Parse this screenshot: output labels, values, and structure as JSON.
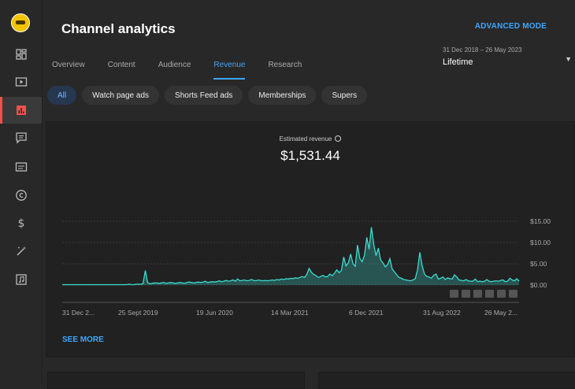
{
  "sidebar": {
    "items": [
      {
        "icon": "dashboard-icon"
      },
      {
        "icon": "content-icon"
      },
      {
        "icon": "analytics-icon",
        "active": true
      },
      {
        "icon": "comments-icon"
      },
      {
        "icon": "subtitles-icon"
      },
      {
        "icon": "copyright-icon"
      },
      {
        "icon": "earn-icon"
      },
      {
        "icon": "customization-icon"
      },
      {
        "icon": "audio-library-icon"
      }
    ]
  },
  "header": {
    "title": "Channel analytics",
    "advanced_mode": "ADVANCED MODE",
    "date_range": "31 Dec 2018 – 26 May 2023",
    "date_label": "Lifetime"
  },
  "tabs": [
    "Overview",
    "Content",
    "Audience",
    "Revenue",
    "Research"
  ],
  "chips": [
    "All",
    "Watch page ads",
    "Shorts Feed ads",
    "Memberships",
    "Supers"
  ],
  "metric": {
    "label": "Estimated revenue",
    "value": "$1,531.44"
  },
  "chart_data": {
    "type": "area",
    "x_ticks": [
      "31 Dec 2...",
      "25 Sept 2019",
      "19 Jun 2020",
      "14 Mar 2021",
      "6 Dec 2021",
      "31 Aug 2022",
      "26 May 2..."
    ],
    "y_ticks": [
      "$15.00",
      "$10.00",
      "$5.00",
      "$0.00"
    ],
    "ylim": [
      0,
      15
    ],
    "series_color": "#3ddbd0",
    "series": [
      {
        "values": [
          0.1,
          0.1,
          0.1,
          0.1,
          0.1,
          0.1,
          0.1,
          0.1,
          0.1,
          0.1,
          0.1,
          0.1,
          0.1,
          0.1,
          0.1,
          0.1,
          0.1,
          0.1,
          0.1,
          0.1,
          0.1,
          0.1,
          0.1,
          0.1,
          0.1,
          0.1,
          0.1,
          0.1,
          0.1,
          0.2,
          0.1,
          0.1,
          0.2,
          0.2,
          0.2,
          0.3,
          3.4,
          0.6,
          0.3,
          0.4,
          0.5,
          0.5,
          0.4,
          0.5,
          0.6,
          0.4,
          0.5,
          0.6,
          0.5,
          0.4,
          0.5,
          0.6,
          0.5,
          0.4,
          0.6,
          0.7,
          0.6,
          0.5,
          0.6,
          0.7,
          0.6,
          0.7,
          0.9,
          0.6,
          0.7,
          0.8,
          0.7,
          0.8,
          1.0,
          0.8,
          0.9,
          1.1,
          0.9,
          1.0,
          1.2,
          0.9,
          1.4,
          1.0,
          1.1,
          1.2,
          1.0,
          1.1,
          1.3,
          1.1,
          1.0,
          1.2,
          1.1,
          1.0,
          1.1,
          1.0,
          1.1,
          1.2,
          1.1,
          1.3,
          1.2,
          1.4,
          1.3,
          1.5,
          1.4,
          1.6,
          1.5,
          1.7,
          1.6,
          1.8,
          2.0,
          1.8,
          2.5,
          3.9,
          3.0,
          2.5,
          2.2,
          1.8,
          2.0,
          2.3,
          1.9,
          2.0,
          2.6,
          2.2,
          2.8,
          3.6,
          2.9,
          3.4,
          6.6,
          4.5,
          5.2,
          7.3,
          5.0,
          4.4,
          9.4,
          6.2,
          5.5,
          7.0,
          11.2,
          8.4,
          13.6,
          9.6,
          6.9,
          8.7,
          5.9,
          5.2,
          4.3,
          4.8,
          6.2,
          3.8,
          3.1,
          2.4,
          1.8,
          1.6,
          1.3,
          1.2,
          1.1,
          1.0,
          1.2,
          1.5,
          3.6,
          7.7,
          4.5,
          2.6,
          2.0,
          1.9,
          1.6,
          2.3,
          2.6,
          1.4,
          1.6,
          1.9,
          1.3,
          1.7,
          1.5,
          1.4,
          2.4,
          1.9,
          1.2,
          1.1,
          1.0,
          1.3,
          1.0,
          0.9,
          0.9,
          1.4,
          0.8,
          0.9,
          0.8,
          0.9,
          1.3,
          0.9,
          0.8,
          0.9,
          1.0,
          0.9,
          1.1,
          1.2,
          0.8,
          0.9,
          1.6,
          1.2,
          1.0,
          1.5,
          0.9
        ]
      }
    ]
  },
  "see_more": "SEE MORE"
}
